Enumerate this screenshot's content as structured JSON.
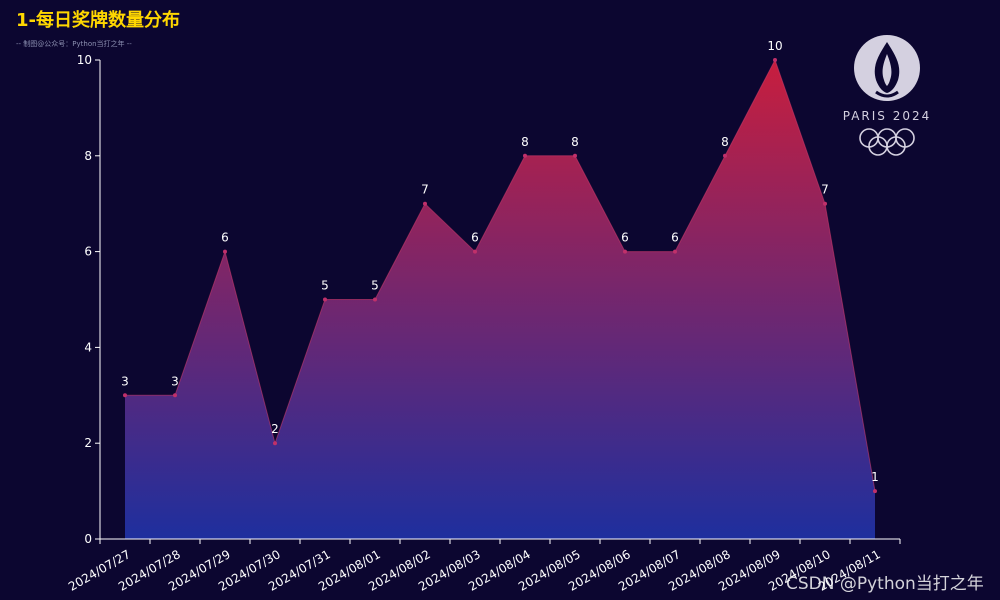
{
  "title": "1-每日奖牌数量分布",
  "subtitle": "-- 制图@公众号：Python当打之年 --",
  "watermark": "CSDN @Python当打之年",
  "logo": {
    "icon": "paris-2024-olympic-logo",
    "text": "PARIS 2024"
  },
  "colors": {
    "background": "#0c0630",
    "title": "#ffd700",
    "gradient_top": "#c81e3e",
    "gradient_bottom": "#1e2f9e",
    "axis": "#ffffff",
    "label": "#ffffff"
  },
  "chart_data": {
    "type": "area",
    "categories": [
      "2024/07/27",
      "2024/07/28",
      "2024/07/29",
      "2024/07/30",
      "2024/07/31",
      "2024/08/01",
      "2024/08/02",
      "2024/08/03",
      "2024/08/04",
      "2024/08/05",
      "2024/08/06",
      "2024/08/07",
      "2024/08/08",
      "2024/08/09",
      "2024/08/10",
      "2024/08/11"
    ],
    "values": [
      3,
      3,
      6,
      2,
      5,
      5,
      7,
      6,
      8,
      8,
      6,
      6,
      8,
      10,
      7,
      1
    ],
    "yticks": [
      0,
      2,
      4,
      6,
      8,
      10
    ],
    "ylim": [
      0,
      10
    ],
    "grid": false,
    "data_labels": true,
    "title": "1-每日奖牌数量分布",
    "xlabel": "",
    "ylabel": ""
  }
}
